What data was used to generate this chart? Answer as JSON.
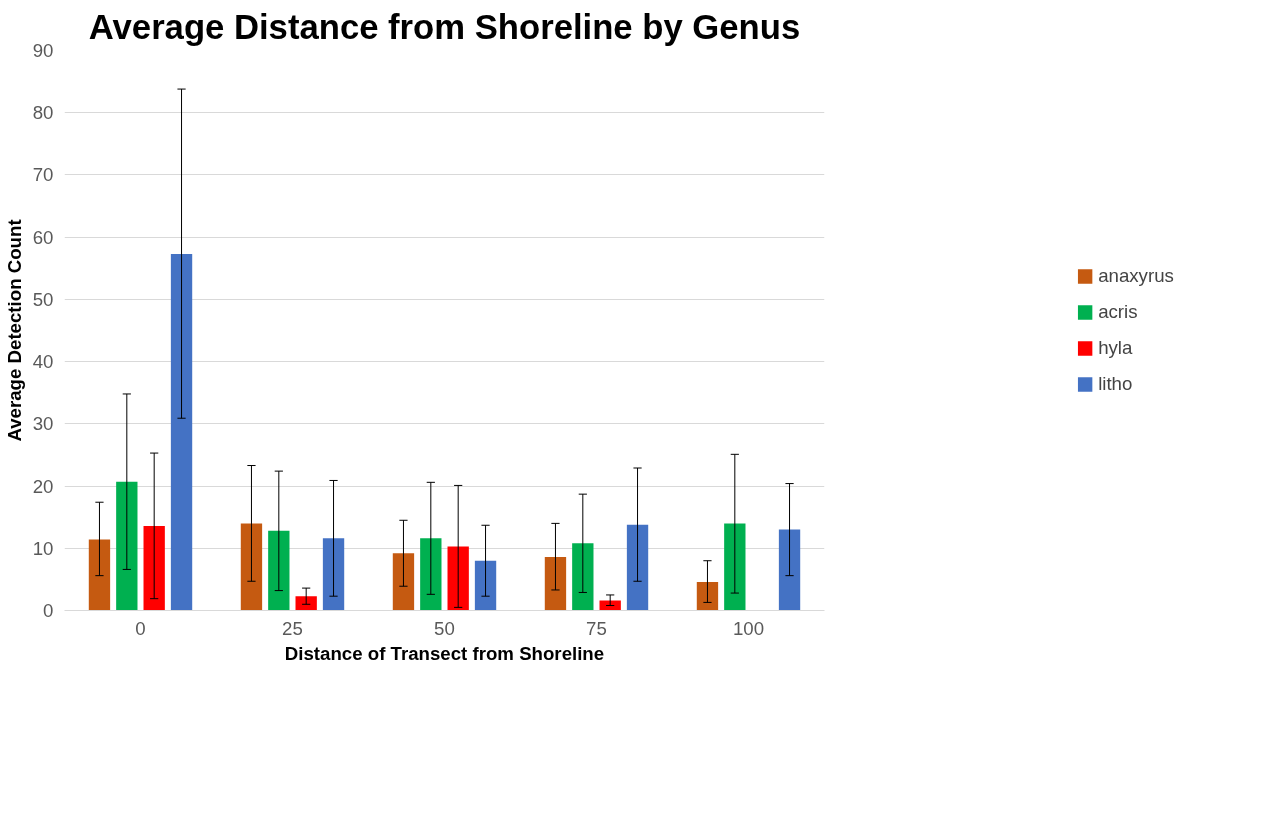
{
  "chart_data": {
    "type": "bar",
    "title": "Average Distance from Shoreline by Genus",
    "xlabel": "Distance of Transect from Shoreline",
    "ylabel": "Average Detection Count",
    "categories": [
      "0",
      "25",
      "50",
      "75",
      "100"
    ],
    "series": [
      {
        "name": "anaxyrus",
        "color": "#c55a11",
        "values": [
          11.4,
          14.0,
          9.2,
          8.6,
          4.6
        ],
        "errors": [
          [
            5.6,
            17.4
          ],
          [
            4.7,
            23.3
          ],
          [
            3.9,
            14.5
          ],
          [
            3.3,
            14.0
          ],
          [
            1.3,
            8.0
          ]
        ]
      },
      {
        "name": "acris",
        "color": "#00b050",
        "values": [
          20.7,
          12.8,
          11.6,
          10.8,
          14.0
        ],
        "errors": [
          [
            6.6,
            34.8
          ],
          [
            3.2,
            22.4
          ],
          [
            2.6,
            20.6
          ],
          [
            2.9,
            18.7
          ],
          [
            2.8,
            25.1
          ]
        ]
      },
      {
        "name": "hyla",
        "color": "#ff0000",
        "values": [
          13.6,
          2.3,
          10.3,
          1.6,
          null
        ],
        "errors": [
          [
            1.9,
            25.3
          ],
          [
            1.0,
            3.6
          ],
          [
            0.5,
            20.1
          ],
          [
            0.8,
            2.5
          ],
          null
        ]
      },
      {
        "name": "litho",
        "color": "#4472c4",
        "values": [
          57.3,
          11.6,
          8.0,
          13.8,
          13.0
        ],
        "errors": [
          [
            30.9,
            83.8
          ],
          [
            2.3,
            20.9
          ],
          [
            2.3,
            13.7
          ],
          [
            4.7,
            22.9
          ],
          [
            5.6,
            20.4
          ]
        ]
      }
    ],
    "ylim": [
      0,
      90
    ],
    "yticks": [
      0,
      10,
      20,
      30,
      40,
      50,
      60,
      70,
      80,
      90
    ],
    "grid": "y",
    "legend": "right"
  }
}
